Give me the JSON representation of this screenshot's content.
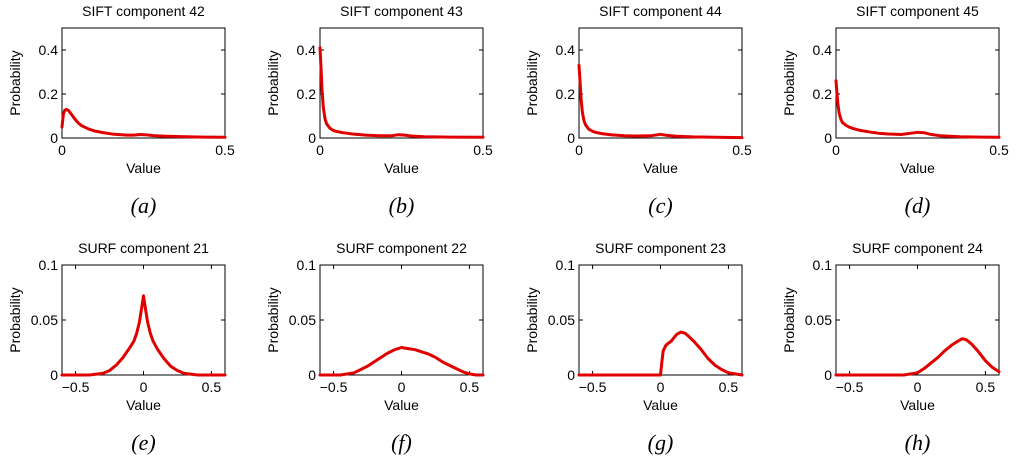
{
  "style": {
    "line_color": "#e00000"
  },
  "chart_data": [
    {
      "type": "line",
      "title": "SIFT component 42",
      "xlabel": "Value",
      "ylabel": "Probability",
      "caption": "(a)",
      "xlim": [
        0,
        0.5
      ],
      "ylim": [
        0,
        0.5
      ],
      "xticks": [
        {
          "v": 0,
          "t": "0"
        },
        {
          "v": 0.5,
          "t": "0.5"
        }
      ],
      "yticks": [
        {
          "v": 0,
          "t": "0"
        },
        {
          "v": 0.2,
          "t": "0.2"
        },
        {
          "v": 0.4,
          "t": "0.4"
        }
      ],
      "x": [
        0,
        0.004,
        0.008,
        0.013,
        0.02,
        0.03,
        0.04,
        0.05,
        0.06,
        0.08,
        0.1,
        0.13,
        0.16,
        0.2,
        0.22,
        0.24,
        0.26,
        0.28,
        0.32,
        0.38,
        0.44,
        0.5
      ],
      "y": [
        0.05,
        0.105,
        0.125,
        0.13,
        0.125,
        0.105,
        0.085,
        0.068,
        0.056,
        0.042,
        0.032,
        0.023,
        0.017,
        0.013,
        0.013,
        0.016,
        0.014,
        0.011,
        0.008,
        0.006,
        0.004,
        0.003
      ]
    },
    {
      "type": "line",
      "title": "SIFT component 43",
      "xlabel": "Value",
      "ylabel": "Probability",
      "caption": "(b)",
      "xlim": [
        0,
        0.5
      ],
      "ylim": [
        0,
        0.5
      ],
      "xticks": [
        {
          "v": 0,
          "t": "0"
        },
        {
          "v": 0.5,
          "t": "0.5"
        }
      ],
      "yticks": [
        {
          "v": 0,
          "t": "0"
        },
        {
          "v": 0.2,
          "t": "0.2"
        },
        {
          "v": 0.4,
          "t": "0.4"
        }
      ],
      "x": [
        0,
        0.003,
        0.006,
        0.01,
        0.015,
        0.02,
        0.03,
        0.04,
        0.05,
        0.07,
        0.1,
        0.14,
        0.18,
        0.22,
        0.24,
        0.26,
        0.28,
        0.32,
        0.4,
        0.5
      ],
      "y": [
        0.41,
        0.32,
        0.22,
        0.14,
        0.09,
        0.065,
        0.045,
        0.035,
        0.03,
        0.024,
        0.018,
        0.013,
        0.01,
        0.01,
        0.015,
        0.013,
        0.009,
        0.006,
        0.004,
        0.003
      ]
    },
    {
      "type": "line",
      "title": "SIFT component 44",
      "xlabel": "Value",
      "ylabel": "Probability",
      "caption": "(c)",
      "xlim": [
        0,
        0.5
      ],
      "ylim": [
        0,
        0.5
      ],
      "xticks": [
        {
          "v": 0,
          "t": "0"
        },
        {
          "v": 0.5,
          "t": "0.5"
        }
      ],
      "yticks": [
        {
          "v": 0,
          "t": "0"
        },
        {
          "v": 0.2,
          "t": "0.2"
        },
        {
          "v": 0.4,
          "t": "0.4"
        }
      ],
      "x": [
        0,
        0.003,
        0.006,
        0.01,
        0.015,
        0.02,
        0.03,
        0.04,
        0.05,
        0.07,
        0.1,
        0.14,
        0.18,
        0.22,
        0.25,
        0.27,
        0.3,
        0.35,
        0.42,
        0.5
      ],
      "y": [
        0.33,
        0.26,
        0.18,
        0.12,
        0.08,
        0.06,
        0.04,
        0.032,
        0.026,
        0.02,
        0.014,
        0.01,
        0.009,
        0.01,
        0.017,
        0.012,
        0.008,
        0.005,
        0.003,
        0.002
      ]
    },
    {
      "type": "line",
      "title": "SIFT component 45",
      "xlabel": "Value",
      "ylabel": "Probability",
      "caption": "(d)",
      "xlim": [
        0,
        0.5
      ],
      "ylim": [
        0,
        0.5
      ],
      "xticks": [
        {
          "v": 0,
          "t": "0"
        },
        {
          "v": 0.5,
          "t": "0.5"
        }
      ],
      "yticks": [
        {
          "v": 0,
          "t": "0"
        },
        {
          "v": 0.2,
          "t": "0.2"
        },
        {
          "v": 0.4,
          "t": "0.4"
        }
      ],
      "x": [
        0,
        0.003,
        0.006,
        0.01,
        0.015,
        0.02,
        0.03,
        0.04,
        0.05,
        0.07,
        0.1,
        0.13,
        0.16,
        0.2,
        0.23,
        0.25,
        0.27,
        0.29,
        0.32,
        0.38,
        0.45,
        0.5
      ],
      "y": [
        0.26,
        0.2,
        0.15,
        0.11,
        0.085,
        0.07,
        0.058,
        0.05,
        0.044,
        0.036,
        0.028,
        0.022,
        0.018,
        0.016,
        0.022,
        0.026,
        0.024,
        0.017,
        0.01,
        0.006,
        0.004,
        0.003
      ]
    },
    {
      "type": "line",
      "title": "SURF component 21",
      "xlabel": "Value",
      "ylabel": "Probability",
      "caption": "(e)",
      "xlim": [
        -0.6,
        0.6
      ],
      "ylim": [
        0,
        0.1
      ],
      "xticks": [
        {
          "v": -0.5,
          "t": "−0.5"
        },
        {
          "v": 0,
          "t": "0"
        },
        {
          "v": 0.5,
          "t": "0.5"
        }
      ],
      "yticks": [
        {
          "v": 0,
          "t": "0"
        },
        {
          "v": 0.05,
          "t": "0.05"
        },
        {
          "v": 0.1,
          "t": "0.1"
        }
      ],
      "x": [
        -0.6,
        -0.4,
        -0.3,
        -0.25,
        -0.2,
        -0.15,
        -0.1,
        -0.07,
        -0.05,
        -0.03,
        -0.015,
        0,
        0.015,
        0.03,
        0.05,
        0.07,
        0.1,
        0.15,
        0.2,
        0.25,
        0.3,
        0.4,
        0.6
      ],
      "y": [
        0,
        0,
        0.0015,
        0.004,
        0.009,
        0.016,
        0.025,
        0.031,
        0.038,
        0.048,
        0.06,
        0.072,
        0.06,
        0.048,
        0.038,
        0.031,
        0.024,
        0.015,
        0.008,
        0.004,
        0.0015,
        0,
        0
      ]
    },
    {
      "type": "line",
      "title": "SURF component 22",
      "xlabel": "Value",
      "ylabel": "Probability",
      "caption": "(f)",
      "xlim": [
        -0.6,
        0.6
      ],
      "ylim": [
        0,
        0.1
      ],
      "xticks": [
        {
          "v": -0.5,
          "t": "−0.5"
        },
        {
          "v": 0,
          "t": "0"
        },
        {
          "v": 0.5,
          "t": "0.5"
        }
      ],
      "yticks": [
        {
          "v": 0,
          "t": "0"
        },
        {
          "v": 0.05,
          "t": "0.05"
        },
        {
          "v": 0.1,
          "t": "0.1"
        }
      ],
      "x": [
        -0.6,
        -0.45,
        -0.35,
        -0.3,
        -0.25,
        -0.2,
        -0.15,
        -0.1,
        -0.05,
        0,
        0.05,
        0.1,
        0.15,
        0.2,
        0.25,
        0.3,
        0.35,
        0.4,
        0.45,
        0.5,
        0.55,
        0.6
      ],
      "y": [
        0,
        0,
        0.002,
        0.005,
        0.008,
        0.012,
        0.016,
        0.02,
        0.023,
        0.025,
        0.024,
        0.023,
        0.021,
        0.019,
        0.016,
        0.012,
        0.009,
        0.006,
        0.003,
        0.001,
        0,
        0
      ]
    },
    {
      "type": "line",
      "title": "SURF component 23",
      "xlabel": "Value",
      "ylabel": "Probability",
      "caption": "(g)",
      "xlim": [
        -0.6,
        0.6
      ],
      "ylim": [
        0,
        0.1
      ],
      "xticks": [
        {
          "v": -0.5,
          "t": "−0.5"
        },
        {
          "v": 0,
          "t": "0"
        },
        {
          "v": 0.5,
          "t": "0.5"
        }
      ],
      "yticks": [
        {
          "v": 0,
          "t": "0"
        },
        {
          "v": 0.05,
          "t": "0.05"
        },
        {
          "v": 0.1,
          "t": "0.1"
        }
      ],
      "x": [
        -0.6,
        -0.1,
        0,
        0.01,
        0.02,
        0.04,
        0.06,
        0.08,
        0.1,
        0.12,
        0.15,
        0.18,
        0.2,
        0.25,
        0.3,
        0.35,
        0.4,
        0.45,
        0.5,
        0.55,
        0.6
      ],
      "y": [
        0,
        0,
        0,
        0.012,
        0.022,
        0.027,
        0.029,
        0.031,
        0.034,
        0.037,
        0.039,
        0.038,
        0.036,
        0.03,
        0.023,
        0.015,
        0.009,
        0.005,
        0.002,
        0.001,
        0
      ]
    },
    {
      "type": "line",
      "title": "SURF component 24",
      "xlabel": "Value",
      "ylabel": "Probability",
      "caption": "(h)",
      "xlim": [
        -0.6,
        0.6
      ],
      "ylim": [
        0,
        0.1
      ],
      "xticks": [
        {
          "v": -0.5,
          "t": "−0.5"
        },
        {
          "v": 0,
          "t": "0"
        },
        {
          "v": 0.5,
          "t": "0.5"
        }
      ],
      "yticks": [
        {
          "v": 0,
          "t": "0"
        },
        {
          "v": 0.05,
          "t": "0.05"
        },
        {
          "v": 0.1,
          "t": "0.1"
        }
      ],
      "x": [
        -0.6,
        -0.1,
        0,
        0.05,
        0.1,
        0.15,
        0.2,
        0.25,
        0.3,
        0.33,
        0.36,
        0.4,
        0.45,
        0.5,
        0.55,
        0.6
      ],
      "y": [
        0,
        0,
        0.002,
        0.006,
        0.011,
        0.016,
        0.022,
        0.027,
        0.031,
        0.033,
        0.032,
        0.028,
        0.021,
        0.013,
        0.007,
        0.003
      ]
    }
  ]
}
